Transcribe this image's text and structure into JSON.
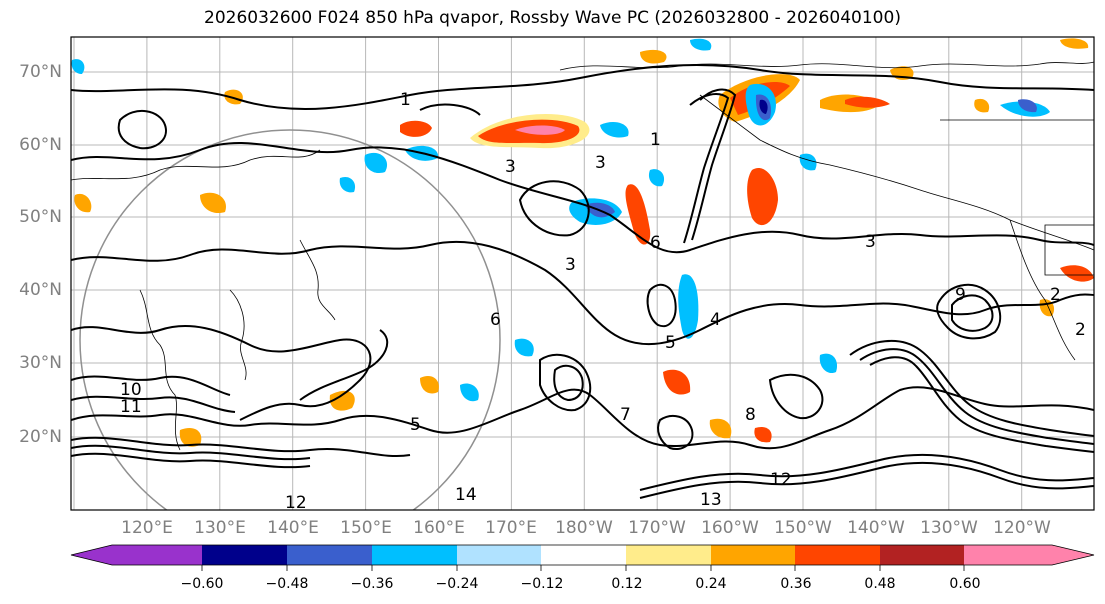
{
  "title": "2026032600 F024 850 hPa qvapor, Rossby Wave PC (2026032800 - 2026040100)",
  "latitude_labels": [
    "70°N",
    "60°N",
    "50°N",
    "40°N",
    "30°N",
    "20°N"
  ],
  "longitude_labels": [
    "120°E",
    "130°E",
    "140°E",
    "150°E",
    "160°E",
    "170°E",
    "180°W",
    "170°W",
    "160°W",
    "150°W",
    "140°W",
    "130°W",
    "120°W"
  ],
  "colorbar": {
    "tick_labels": [
      "−0.60",
      "−0.48",
      "−0.36",
      "−0.24",
      "−0.12",
      "0.12",
      "0.24",
      "0.36",
      "0.48",
      "0.60"
    ],
    "colors": [
      "#9932cc",
      "#00008b",
      "#3a5fcd",
      "#00bfff",
      "#b0e2ff",
      "#ffffff",
      "#ffec8b",
      "#ffa500",
      "#ff4500",
      "#b22222",
      "#ff82ab"
    ],
    "extend": "both"
  },
  "contour_labels": [
    "1",
    "1",
    "3",
    "3",
    "3",
    "3",
    "4",
    "5",
    "5",
    "6",
    "6",
    "7",
    "8",
    "9",
    "10",
    "11",
    "12",
    "12",
    "13",
    "14",
    "2",
    "2"
  ]
}
